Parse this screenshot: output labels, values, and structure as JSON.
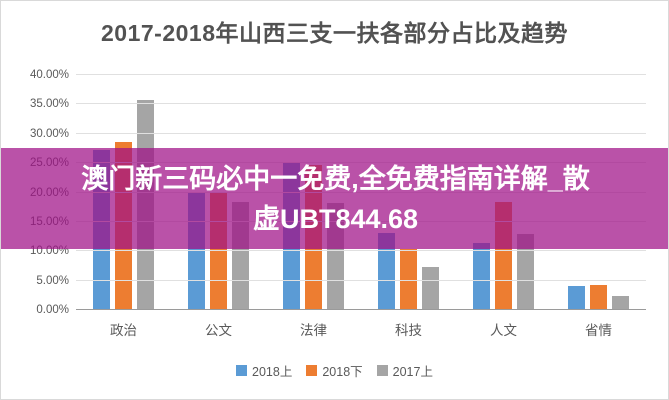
{
  "page": {
    "background": "#ffffff",
    "border_color": "#d9d9d9"
  },
  "chart_data": {
    "type": "bar",
    "title": "2017-2018年山西三支一扶各部分占比及趋势",
    "title_color": "#525252",
    "categories": [
      "政治",
      "公文",
      "法律",
      "科技",
      "人文",
      "省情"
    ],
    "series": [
      {
        "name": "2018上",
        "color": "#5B9BD5",
        "values": [
          27.0,
          19.7,
          25.0,
          13.0,
          11.3,
          4.0
        ]
      },
      {
        "name": "2018下",
        "color": "#ED7D31",
        "values": [
          28.5,
          19.7,
          24.5,
          10.3,
          18.2,
          4.1
        ]
      },
      {
        "name": "2017上",
        "color": "#A5A5A5",
        "values": [
          35.5,
          18.2,
          18.0,
          7.2,
          12.8,
          2.2
        ]
      }
    ],
    "ylim": [
      0,
      40
    ],
    "ytick_step": 5,
    "ytick_labels": [
      "0.00%",
      "5.00%",
      "10.00%",
      "15.00%",
      "20.00%",
      "25.00%",
      "30.00%",
      "35.00%",
      "40.00%"
    ],
    "grid": true,
    "gridline_color": "#e0e0e0",
    "axis_color": "#9a9a9a",
    "tick_color": "#595959",
    "legend_position": "bottom"
  },
  "overlay": {
    "line1": "澳门新三码必中一免费,全免费指南详解_散",
    "line2": "虚UBT844.68",
    "background": "#A00F87",
    "opacity": 0.72,
    "text_color": "#ffffff"
  }
}
